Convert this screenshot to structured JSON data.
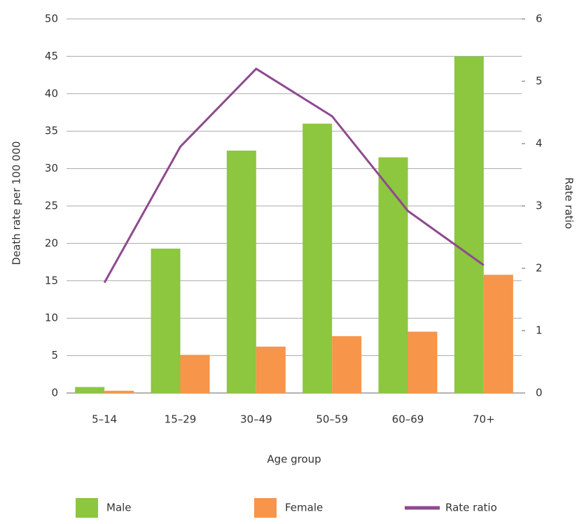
{
  "chart_data": {
    "type": "bar",
    "categories": [
      "5–14",
      "15–29",
      "30–49",
      "50–59",
      "60–69",
      "70+"
    ],
    "x_label": "Age group",
    "y_label": "Death rate per 100 000",
    "y2_label": "Rate ratio",
    "series": [
      {
        "name": "Male",
        "type": "bar",
        "color": "#8dc63f",
        "values": [
          0.8,
          19.3,
          32.4,
          36,
          31.5,
          45
        ]
      },
      {
        "name": "Female",
        "type": "bar",
        "color": "#f7954a",
        "values": [
          0.3,
          5.1,
          6.2,
          7.6,
          8.2,
          15.8
        ]
      },
      {
        "name": "Rate ratio",
        "type": "line",
        "axis": "y2",
        "color": "#8e4a8e",
        "values": [
          1.77,
          3.95,
          5.2,
          4.44,
          2.92,
          2.05
        ]
      }
    ],
    "ylim": [
      0,
      50
    ],
    "yticks": [
      0,
      5,
      10,
      15,
      20,
      25,
      30,
      35,
      40,
      45,
      50
    ],
    "y2lim": [
      0,
      6
    ],
    "y2ticks": [
      0,
      1,
      2,
      3,
      4,
      5,
      6
    ],
    "grid": true
  }
}
